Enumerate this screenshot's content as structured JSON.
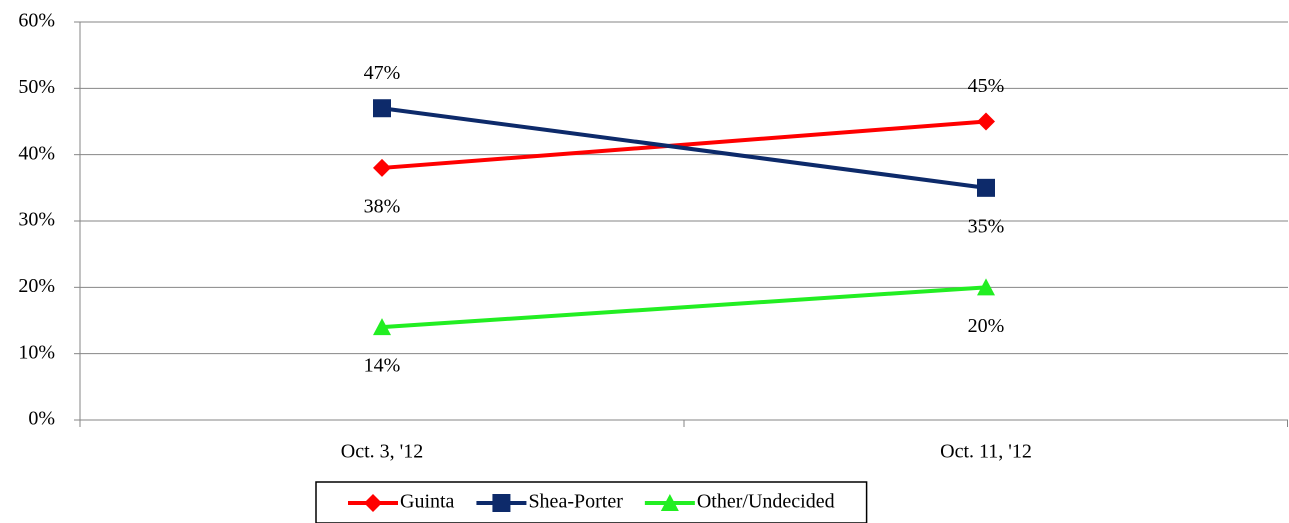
{
  "chart_data": {
    "type": "line",
    "categories": [
      "Oct. 3, '12",
      "Oct. 11, '12"
    ],
    "series": [
      {
        "name": "Guinta",
        "color": "#ff0000",
        "marker": "diamond",
        "values": [
          38,
          45
        ],
        "value_labels": [
          "38%",
          "45%"
        ]
      },
      {
        "name": "Shea-Porter",
        "color": "#0d2a6a",
        "marker": "square",
        "values": [
          47,
          35
        ],
        "value_labels": [
          "47%",
          "35%"
        ]
      },
      {
        "name": "Other/Undecided",
        "color": "#22ee22",
        "marker": "triangle",
        "values": [
          14,
          20
        ],
        "value_labels": [
          "14%",
          "20%"
        ]
      }
    ],
    "ylim": [
      0,
      60
    ],
    "yticks": [
      {
        "value": 0,
        "label": "0%"
      },
      {
        "value": 10,
        "label": "10%"
      },
      {
        "value": 20,
        "label": "20%"
      },
      {
        "value": 30,
        "label": "30%"
      },
      {
        "value": 40,
        "label": "40%"
      },
      {
        "value": 50,
        "label": "50%"
      },
      {
        "value": 60,
        "label": "60%"
      }
    ],
    "grid": true,
    "legend": "bottom"
  }
}
